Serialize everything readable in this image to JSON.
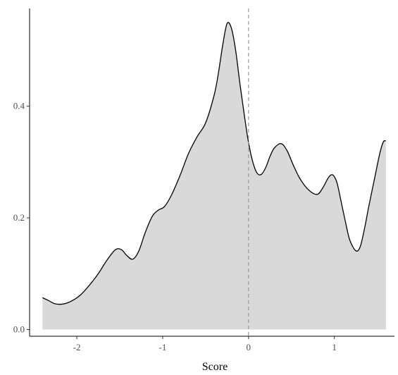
{
  "chart_data": {
    "type": "area",
    "title": "",
    "xlabel": "Score",
    "ylabel": "",
    "xlim": [
      -2.55,
      1.7
    ],
    "ylim": [
      -0.012,
      0.575
    ],
    "x_ticks": [
      -2,
      -1,
      0,
      1
    ],
    "x_tick_labels": [
      "-2",
      "-1",
      "0",
      "1"
    ],
    "y_ticks": [
      0.0,
      0.2,
      0.4
    ],
    "y_tick_labels": [
      "0.0",
      "0.2",
      "0.4"
    ],
    "grid": false,
    "legend": "none",
    "reference_line": {
      "x": 0,
      "style": "dashed",
      "color": "#999999"
    },
    "fill_color": "#d9d9d9",
    "line_color": "#000000",
    "series": [
      {
        "x": [
          -2.4,
          -2.33,
          -2.25,
          -2.15,
          -2.05,
          -1.95,
          -1.85,
          -1.75,
          -1.65,
          -1.55,
          -1.48,
          -1.42,
          -1.35,
          -1.28,
          -1.2,
          -1.12,
          -1.05,
          -0.98,
          -0.9,
          -0.8,
          -0.7,
          -0.6,
          -0.5,
          -0.4,
          -0.35,
          -0.3,
          -0.25,
          -0.2,
          -0.15,
          -0.1,
          -0.05,
          0.0,
          0.05,
          0.1,
          0.15,
          0.2,
          0.25,
          0.3,
          0.38,
          0.45,
          0.52,
          0.6,
          0.7,
          0.8,
          0.87,
          0.93,
          0.98,
          1.03,
          1.08,
          1.13,
          1.18,
          1.25,
          1.3,
          1.35,
          1.4,
          1.47,
          1.53,
          1.57,
          1.6
        ],
        "y": [
          0.057,
          0.052,
          0.046,
          0.046,
          0.052,
          0.063,
          0.08,
          0.1,
          0.124,
          0.143,
          0.143,
          0.133,
          0.126,
          0.14,
          0.175,
          0.203,
          0.214,
          0.22,
          0.24,
          0.275,
          0.315,
          0.345,
          0.37,
          0.42,
          0.46,
          0.51,
          0.548,
          0.54,
          0.5,
          0.44,
          0.385,
          0.335,
          0.3,
          0.28,
          0.278,
          0.29,
          0.31,
          0.325,
          0.333,
          0.32,
          0.295,
          0.27,
          0.25,
          0.242,
          0.255,
          0.272,
          0.277,
          0.263,
          0.228,
          0.192,
          0.16,
          0.141,
          0.148,
          0.18,
          0.22,
          0.272,
          0.316,
          0.336,
          0.338
        ]
      }
    ]
  }
}
